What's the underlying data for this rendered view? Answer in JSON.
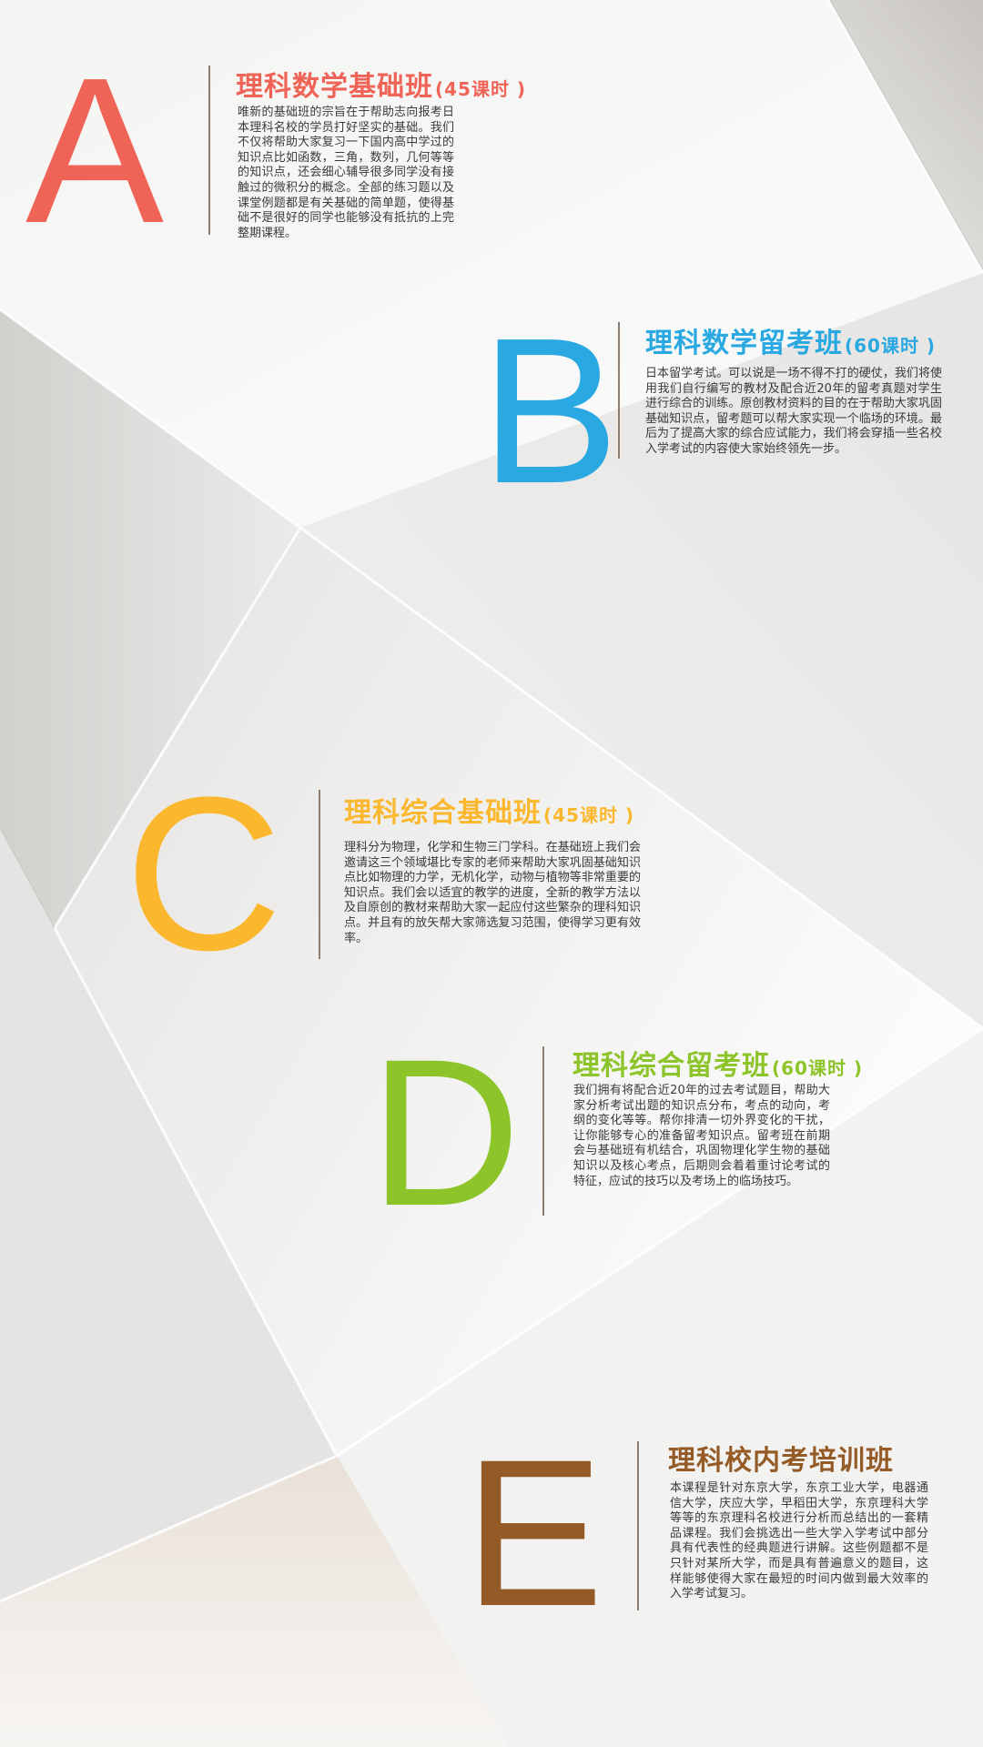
{
  "colors": {
    "a": "#ef6456",
    "b": "#29a8e1",
    "c": "#fbb82e",
    "d": "#8cc429",
    "e": "#945b26"
  },
  "courses": [
    {
      "letter": "A",
      "title": "理科数学基础班",
      "hours": "(45课时 )",
      "description": "唯新的基础班的宗旨在于帮助志向报考日本理科名校的学员打好坚实的基础。我们不仅将帮助大家复习一下国内高中学过的知识点比如函数，三角，数列，几何等等的知识点，还会细心辅导很多同学没有接触过的微积分的概念。全部的练习题以及课堂例题都是有关基础的简单题，使得基础不是很好的同学也能够没有抵抗的上完整期课程。"
    },
    {
      "letter": "B",
      "title": "理科数学留考班",
      "hours": "(60课时 )",
      "description": "日本留学考试。可以说是一场不得不打的硬仗，我们将使用我们自行编写的教材及配合近20年的留考真题对学生进行综合的训练。原创教材资料的目的在于帮助大家巩固基础知识点，留考题可以帮大家实现一个临场的环境。最后为了提高大家的综合应试能力，我们将会穿插一些名校入学考试的内容使大家始终领先一步。"
    },
    {
      "letter": "C",
      "title": "理科综合基础班",
      "hours": "(45课时 )",
      "description": "理科分为物理，化学和生物三门学科。在基础班上我们会邀请这三个领域堪比专家的老师来帮助大家巩固基础知识点比如物理的力学，无机化学，动物与植物等非常重要的知识点。我们会以适宜的教学的进度，全新的教学方法以及自原创的教材来帮助大家一起应付这些繁杂的理科知识点。并且有的放矢帮大家筛选复习范围，使得学习更有效率。"
    },
    {
      "letter": "D",
      "title": "理科综合留考班",
      "hours": "(60课时 )",
      "description": "我们拥有将配合近20年的过去考试题目，帮助大家分析考试出题的知识点分布，考点的动向，考纲的变化等等。帮你排清一切外界变化的干扰，让你能够专心的准备留考知识点。留考班在前期会与基础班有机结合，巩固物理化学生物的基础知识以及核心考点，后期则会着着重讨论考试的特征，应试的技巧以及考场上的临场技巧。"
    },
    {
      "letter": "E",
      "title": "理科校内考培训班",
      "hours": "",
      "description": "本课程是针对东京大学，东京工业大学，电器通信大学，庆应大学，早稻田大学，东京理科大学等等的东京理科名校进行分析而总结出的一套精品课程。我们会挑选出一些大学入学考试中部分具有代表性的经典题进行讲解。这些例题都不是只针对某所大学，而是具有普遍意义的题目，这样能够使得大家在最短的时间内做到最大效率的入学考试复习。"
    }
  ]
}
